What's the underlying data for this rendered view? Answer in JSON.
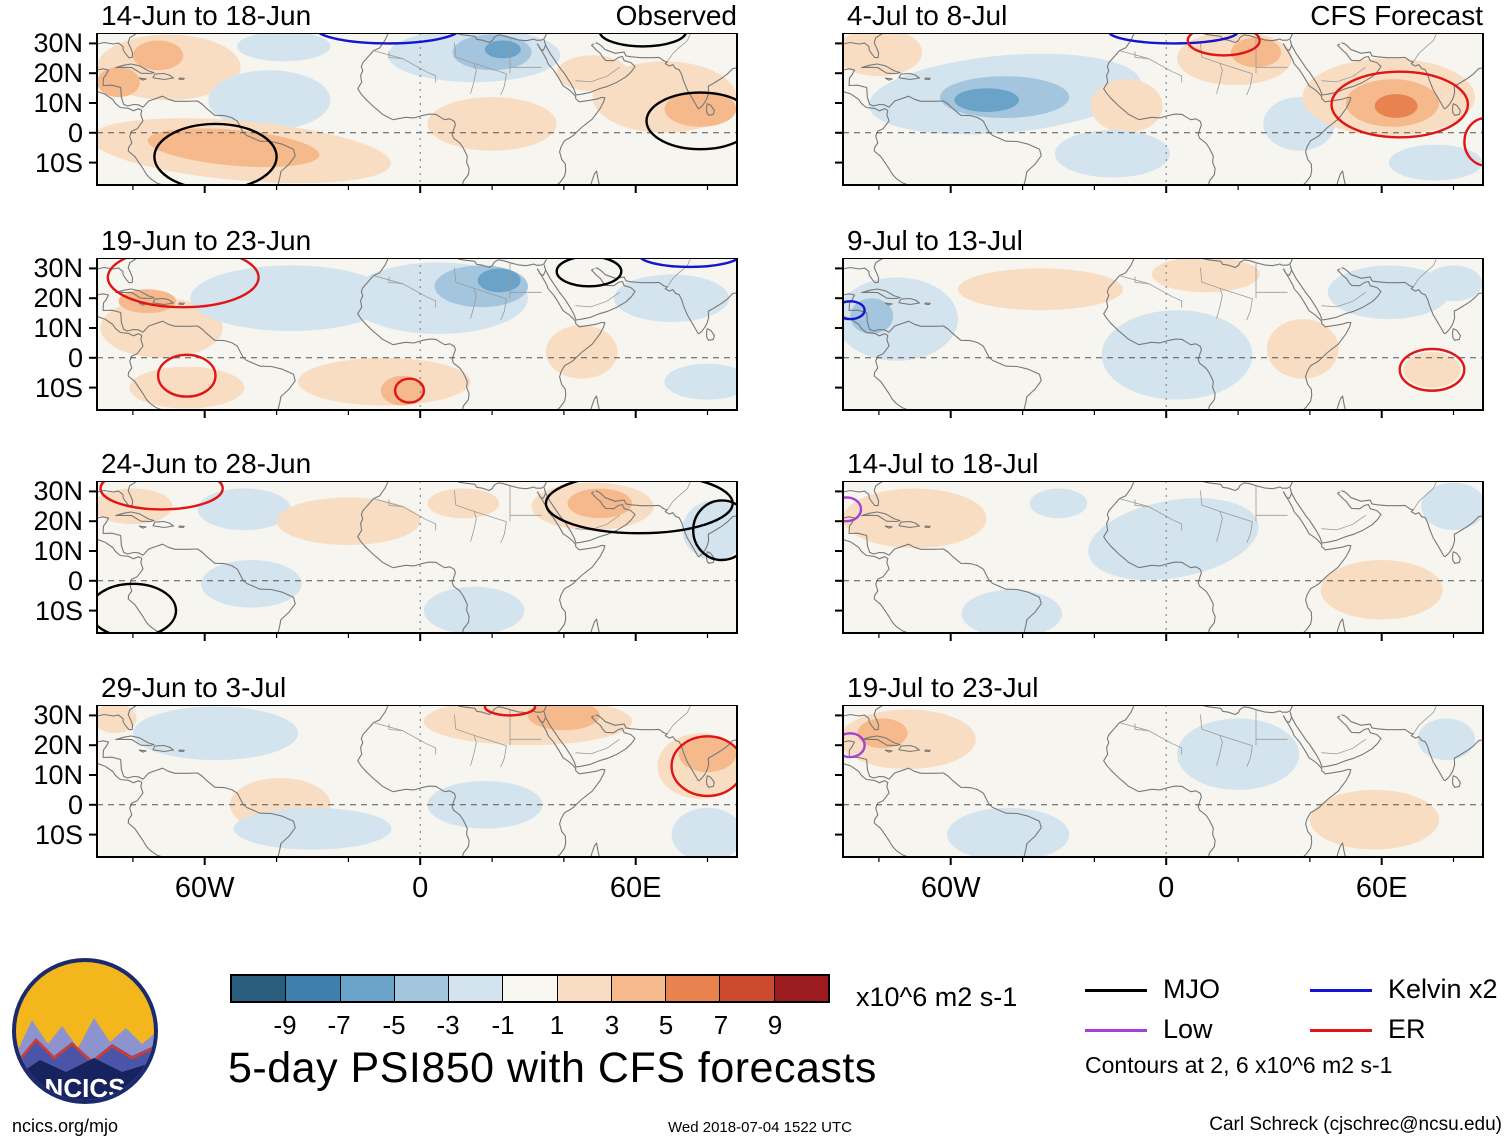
{
  "logo": {
    "text": "NCICS"
  },
  "footer": {
    "left": "ncics.org/mjo",
    "center": "Wed 2018-07-04 1522 UTC",
    "right": "Carl Schreck (cjschrec@ncsu.edu)"
  },
  "chart_data": {
    "type": "heatmap",
    "title": "5-day PSI850 with CFS forecasts",
    "units": "x10^6 m2 s-1",
    "column_headers": [
      "Observed",
      "CFS Forecast"
    ],
    "x_axis": {
      "tick_labels": [
        "60W",
        "0",
        "60E"
      ],
      "tick_lons": [
        -60,
        0,
        60
      ],
      "lon_range": [
        -90,
        88.2
      ],
      "minor_tick_deg": 20
    },
    "y_axis": {
      "tick_labels": [
        "30N",
        "20N",
        "10N",
        "0",
        "10S"
      ],
      "tick_lats": [
        30,
        20,
        10,
        0,
        -10
      ],
      "lat_range": [
        -17.5,
        33.5
      ]
    },
    "colorbar": {
      "tick_labels": [
        "-9",
        "-7",
        "-5",
        "-3",
        "-1",
        "1",
        "3",
        "5",
        "7",
        "9"
      ],
      "thresholds": [
        -9,
        -7,
        -5,
        -3,
        -1,
        1,
        3,
        5,
        7,
        9
      ],
      "colors": [
        "#2a5d7d",
        "#3f7fae",
        "#6ba3c8",
        "#a3c6de",
        "#d3e4ef",
        "#f8f6f1",
        "#f9ddc2",
        "#f5b98c",
        "#e8834f",
        "#cc4b30",
        "#9b1b1e"
      ]
    },
    "legend": [
      {
        "key": "MJO",
        "label": "MJO",
        "color": "#000000"
      },
      {
        "key": "Low",
        "label": "Low",
        "color": "#a63fd6"
      },
      {
        "key": "Kelvin",
        "label": "Kelvin x2",
        "color": "#1515cf"
      },
      {
        "key": "ER",
        "label": "ER",
        "color": "#e01515"
      }
    ],
    "contours_note": "Contours at 2, 6 x10^6 m2 s-1",
    "anomaly_fields": [
      "lon",
      "lat",
      "rx_deg",
      "ry_deg",
      "value",
      "rot_deg"
    ],
    "contour_fields": [
      "type",
      "lon",
      "lat",
      "rx_deg",
      "ry_deg"
    ],
    "panels": [
      {
        "title": "14-Jun to 18-Jun",
        "column": "Observed",
        "anomalies": [
          [
            -70,
            22,
            20,
            11,
            2,
            0
          ],
          [
            -84,
            17,
            6,
            5,
            4,
            0
          ],
          [
            -73,
            26,
            7,
            5,
            4,
            0
          ],
          [
            -38,
            29,
            13,
            5,
            -2,
            0
          ],
          [
            -42,
            11,
            17,
            10,
            -2,
            0
          ],
          [
            -50,
            -6,
            42,
            10,
            2,
            5
          ],
          [
            -52,
            -5,
            24,
            6,
            4,
            5
          ],
          [
            15,
            26,
            24,
            9,
            -2,
            0
          ],
          [
            20,
            27,
            11,
            6,
            -4,
            0
          ],
          [
            23,
            28,
            5,
            3,
            -6,
            0
          ],
          [
            20,
            3,
            18,
            9,
            2,
            0
          ],
          [
            48,
            20,
            10,
            6,
            2,
            0
          ],
          [
            68,
            12,
            20,
            12,
            2,
            0
          ],
          [
            78,
            8,
            10,
            6,
            4,
            0
          ]
        ],
        "contours": [
          [
            "MJO",
            -57,
            -8,
            17,
            11
          ],
          [
            "MJO",
            78,
            4,
            15,
            9.5
          ],
          [
            "Kelvin",
            -9,
            35,
            20,
            5
          ],
          [
            "MJO",
            62,
            34,
            12,
            5
          ]
        ]
      },
      {
        "title": "19-Jun to 23-Jun",
        "column": "Observed",
        "anomalies": [
          [
            -72,
            10,
            17,
            10,
            2,
            0
          ],
          [
            -76,
            19,
            8,
            4,
            4,
            0
          ],
          [
            -36,
            20,
            28,
            11,
            -2,
            0
          ],
          [
            5,
            20,
            25,
            12,
            -2,
            0
          ],
          [
            17,
            24,
            13,
            7,
            -4,
            0
          ],
          [
            22,
            26,
            6,
            4,
            -6,
            0
          ],
          [
            -10,
            -8,
            24,
            8,
            2,
            0
          ],
          [
            -5,
            -11,
            6,
            5,
            4,
            0
          ],
          [
            -65,
            -10,
            16,
            7,
            2,
            0
          ],
          [
            45,
            2,
            10,
            9,
            2,
            0
          ],
          [
            70,
            20,
            16,
            8,
            -2,
            0
          ],
          [
            80,
            -8,
            12,
            6,
            -2,
            0
          ]
        ],
        "contours": [
          [
            "ER",
            -66,
            27,
            21,
            10
          ],
          [
            "ER",
            -65,
            -6,
            8,
            7
          ],
          [
            "ER",
            -3,
            -11,
            4,
            4
          ],
          [
            "MJO",
            47,
            29,
            9,
            5
          ],
          [
            "Kelvin",
            75,
            34.5,
            14,
            4
          ]
        ]
      },
      {
        "title": "24-Jun to 28-Jun",
        "column": "Observed",
        "anomalies": [
          [
            -80,
            25,
            11,
            6,
            2,
            0
          ],
          [
            -49,
            24,
            13,
            7,
            -2,
            0
          ],
          [
            -47,
            -1,
            14,
            8,
            -2,
            0
          ],
          [
            -20,
            20,
            20,
            8,
            2,
            0
          ],
          [
            12,
            26,
            10,
            5,
            2,
            0
          ],
          [
            48,
            25,
            17,
            8,
            2,
            0
          ],
          [
            50,
            26,
            9,
            5,
            4,
            0
          ],
          [
            15,
            -10,
            14,
            8,
            -2,
            0
          ],
          [
            82,
            17,
            9,
            10,
            -2,
            0
          ]
        ],
        "contours": [
          [
            "MJO",
            61,
            26,
            26,
            10
          ],
          [
            "MJO",
            -80,
            -10,
            12,
            9
          ],
          [
            "ER",
            -72,
            31,
            17,
            7
          ],
          [
            "MJO",
            84,
            17,
            8,
            10
          ]
        ]
      },
      {
        "title": "29-Jun to 3-Jul",
        "column": "Observed",
        "anomalies": [
          [
            -57,
            24,
            23,
            9,
            -2,
            0
          ],
          [
            -85,
            29,
            6,
            5,
            2,
            0
          ],
          [
            -39,
            0,
            14,
            9,
            2,
            0
          ],
          [
            30,
            28,
            29,
            8,
            2,
            0
          ],
          [
            40,
            30,
            10,
            5,
            4,
            0
          ],
          [
            18,
            0,
            16,
            8,
            -2,
            0
          ],
          [
            -30,
            -8,
            22,
            7,
            -2,
            0
          ],
          [
            78,
            13,
            12,
            11,
            2,
            0
          ],
          [
            80,
            17,
            8,
            6,
            5,
            0
          ],
          [
            80,
            -10,
            10,
            9,
            -2,
            0
          ]
        ],
        "contours": [
          [
            "ER",
            80,
            13,
            10,
            10
          ],
          [
            "ER",
            25,
            33,
            7,
            3
          ]
        ]
      },
      {
        "title": "4-Jul to 8-Jul",
        "column": "CFS Forecast",
        "anomalies": [
          [
            -45,
            13,
            38,
            13,
            -2,
            -5
          ],
          [
            -45,
            12,
            18,
            7,
            -4,
            0
          ],
          [
            -50,
            11,
            9,
            4,
            -6,
            0
          ],
          [
            -80,
            27,
            12,
            8,
            2,
            0
          ],
          [
            -11,
            9,
            10,
            9,
            2,
            0
          ],
          [
            19,
            25,
            16,
            9,
            2,
            0
          ],
          [
            25,
            27,
            7,
            5,
            4,
            0
          ],
          [
            37,
            3,
            10,
            9,
            -2,
            0
          ],
          [
            -15,
            -7,
            16,
            8,
            -2,
            0
          ],
          [
            62,
            12,
            24,
            13,
            2,
            0
          ],
          [
            63,
            10,
            13,
            8,
            4,
            0
          ],
          [
            64,
            9,
            6,
            4,
            6,
            0
          ],
          [
            75,
            -10,
            13,
            6,
            -2,
            0
          ]
        ],
        "contours": [
          [
            "Kelvin",
            2,
            34,
            18,
            4
          ],
          [
            "ER",
            16,
            31,
            10,
            5
          ],
          [
            "ER",
            65,
            9.5,
            19,
            11
          ],
          [
            "ER",
            89,
            -3,
            6,
            8
          ]
        ]
      },
      {
        "title": "9-Jul to 13-Jul",
        "column": "CFS Forecast",
        "anomalies": [
          [
            -75,
            13,
            17,
            14,
            -2,
            0
          ],
          [
            -82,
            14,
            6,
            6,
            -4,
            0
          ],
          [
            -35,
            23,
            23,
            7,
            2,
            0
          ],
          [
            3,
            1,
            21,
            15,
            -2,
            0
          ],
          [
            11,
            28,
            15,
            6,
            2,
            0
          ],
          [
            38,
            3,
            10,
            10,
            2,
            0
          ],
          [
            62,
            22,
            17,
            9,
            -2,
            0
          ],
          [
            74,
            -4,
            8,
            6,
            2,
            0
          ],
          [
            80,
            25,
            8,
            6,
            -2,
            0
          ]
        ],
        "contours": [
          [
            "Kelvin",
            -88,
            16,
            4,
            3
          ],
          [
            "ER",
            74,
            -4,
            9,
            7
          ]
        ]
      },
      {
        "title": "14-Jul to 18-Jul",
        "column": "CFS Forecast",
        "anomalies": [
          [
            -70,
            21,
            20,
            10,
            2,
            0
          ],
          [
            -30,
            26,
            8,
            5,
            -2,
            0
          ],
          [
            2,
            14,
            24,
            13,
            -2,
            -10
          ],
          [
            60,
            -3,
            17,
            10,
            2,
            0
          ],
          [
            80,
            25,
            9,
            8,
            -2,
            0
          ],
          [
            -43,
            -11,
            14,
            8,
            -2,
            0
          ]
        ],
        "contours": [
          [
            "Low",
            -89,
            24,
            4,
            4
          ]
        ]
      },
      {
        "title": "19-Jul to 23-Jul",
        "column": "CFS Forecast",
        "anomalies": [
          [
            -72,
            22,
            19,
            10,
            2,
            0
          ],
          [
            -79,
            24,
            7,
            5,
            4,
            0
          ],
          [
            20,
            17,
            17,
            12,
            -2,
            0
          ],
          [
            58,
            -5,
            18,
            10,
            2,
            0
          ],
          [
            -44,
            -10,
            17,
            9,
            -2,
            0
          ],
          [
            78,
            22,
            8,
            7,
            -2,
            0
          ]
        ],
        "contours": [
          [
            "Low",
            -88,
            20,
            4,
            4
          ]
        ]
      }
    ]
  }
}
